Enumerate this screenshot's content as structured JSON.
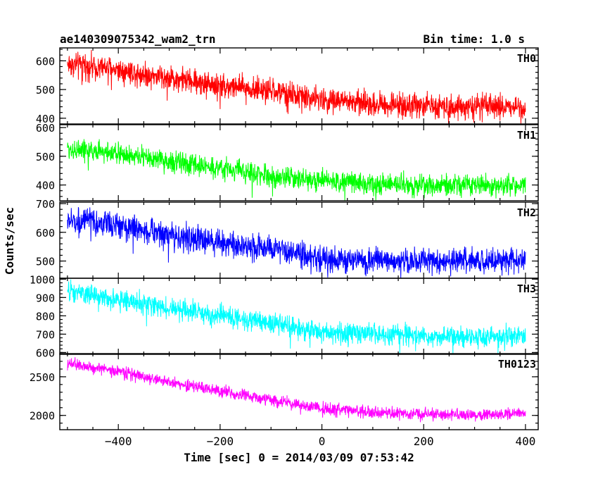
{
  "chart_data": {
    "type": "line",
    "title": "ae140309075342_wam2_trn",
    "subtitle": "Bin time: 1.0 s",
    "xlabel": "Time [sec] 0 = 2014/03/09 07:53:42",
    "ylabel": "Counts/sec",
    "xlim": [
      -515,
      425
    ],
    "xticks": [
      -400,
      -200,
      0,
      200,
      400
    ],
    "xtick_labels": [
      "−400",
      "−200",
      "0",
      "200",
      "400"
    ],
    "grid": false,
    "panels": [
      {
        "name": "TH0",
        "color": "#ff0000",
        "ylim": [
          380,
          645
        ],
        "yticks": [
          400,
          500,
          600
        ],
        "ytick_labels": [
          "400",
          "500",
          "600"
        ],
        "trend_x": [
          -500,
          -400,
          -300,
          -200,
          -100,
          0,
          100,
          200,
          300,
          400
        ],
        "trend_y": [
          590,
          570,
          540,
          515,
          495,
          465,
          450,
          445,
          440,
          440
        ],
        "noise_amplitude": 30
      },
      {
        "name": "TH1",
        "color": "#00ff00",
        "ylim": [
          345,
          610
        ],
        "yticks": [
          400,
          500,
          600
        ],
        "ytick_labels": [
          "400",
          "500",
          "600"
        ],
        "trend_x": [
          -500,
          -400,
          -300,
          -200,
          -100,
          0,
          100,
          200,
          300,
          400
        ],
        "trend_y": [
          525,
          510,
          480,
          460,
          430,
          415,
          405,
          400,
          400,
          400
        ],
        "noise_amplitude": 26
      },
      {
        "name": "TH2",
        "color": "#0000ff",
        "ylim": [
          440,
          705
        ],
        "yticks": [
          500,
          600,
          700
        ],
        "ytick_labels": [
          "500",
          "600",
          "700"
        ],
        "trend_x": [
          -500,
          -400,
          -300,
          -200,
          -100,
          0,
          100,
          200,
          300,
          400
        ],
        "trend_y": [
          640,
          625,
          590,
          565,
          540,
          505,
          500,
          500,
          500,
          505
        ],
        "noise_amplitude": 32
      },
      {
        "name": "TH3",
        "color": "#00ffff",
        "ylim": [
          590,
          1005
        ],
        "yticks": [
          600,
          700,
          800,
          900,
          1000
        ],
        "ytick_labels": [
          "600",
          "700",
          "800",
          "900",
          "1000"
        ],
        "trend_x": [
          -500,
          -400,
          -300,
          -200,
          -100,
          0,
          100,
          200,
          300,
          400
        ],
        "trend_y": [
          930,
          890,
          840,
          800,
          760,
          710,
          700,
          690,
          685,
          690
        ],
        "noise_amplitude": 40
      },
      {
        "name": "TH0123",
        "color": "#ff00ff",
        "ylim": [
          1815,
          2800
        ],
        "yticks": [
          2000,
          2500
        ],
        "ytick_labels": [
          "2000",
          "2500"
        ],
        "trend_x": [
          -500,
          -400,
          -300,
          -200,
          -100,
          0,
          100,
          200,
          300,
          400
        ],
        "trend_y": [
          2670,
          2570,
          2430,
          2320,
          2200,
          2090,
          2040,
          2020,
          2010,
          2030
        ],
        "noise_amplitude": 55
      }
    ]
  }
}
